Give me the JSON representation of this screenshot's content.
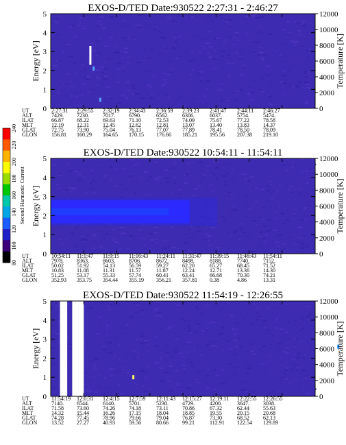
{
  "chart_data": [
    {
      "type": "heatmap",
      "title": "EXOS-D/TED   Date:930522   2:27:31 - 2:46:27",
      "ylabel": "Energy [eV]",
      "ylim": [
        0,
        5
      ],
      "yticks": [
        "0",
        "1",
        "2",
        "3",
        "4",
        "5"
      ],
      "y2label": "Temperature [K]",
      "y2lim": [
        0,
        12000
      ],
      "y2ticks": [
        "0",
        "2000",
        "4000",
        "6000",
        "8000",
        "10000",
        "12000"
      ],
      "x_count": 9,
      "row_labels": [
        "UT",
        "ALT",
        "ILAT",
        "MLT",
        "GLAT",
        "GLON"
      ],
      "rows": [
        [
          "2:27:31",
          "2:29:55",
          "2:32:19",
          "2:34:43",
          "2:36:59",
          "2:39:23",
          "2:41:47",
          "2:44:11",
          "2:46:27"
        ],
        [
          "7429.",
          "7230.",
          "7017.",
          "6790.",
          "6562.",
          "6306.",
          "6037.",
          "5754.",
          "5474."
        ],
        [
          "66.87",
          "68.22",
          "69.63",
          "71.10",
          "72.53",
          "74.09",
          "75.67",
          "77.22",
          "78.58"
        ],
        [
          "12.19",
          "12.31",
          "12.45",
          "12.62",
          "12.81",
          "13.07",
          "13.40",
          "13.83",
          "14.37"
        ],
        [
          "72.75",
          "73.90",
          "75.04",
          "76.13",
          "77.07",
          "77.89",
          "78.41",
          "78.50",
          "78.09"
        ],
        [
          "156.81",
          "160.29",
          "164.65",
          "170.15",
          "176.66",
          "185.21",
          "195.56",
          "207.38",
          "219.10"
        ]
      ],
      "background_level": 110,
      "features": [
        {
          "kind": "streak",
          "x_index": 1.2,
          "energy_from": 2.3,
          "energy_to": 3.3,
          "color": "#ffffff"
        },
        {
          "kind": "dot",
          "x_index": 1.3,
          "energy": 2.1,
          "color": "#5aa0ff"
        },
        {
          "kind": "dot",
          "x_index": 1.5,
          "energy": 0.45,
          "color": "#5aa0ff"
        }
      ]
    },
    {
      "type": "heatmap",
      "title": "EXOS-D/TED   Date:930522   10:54:11 - 11:54:11",
      "ylabel": "Energy [eV]",
      "ylim": [
        0,
        5
      ],
      "yticks": [
        "0",
        "1",
        "2",
        "3",
        "4",
        "5"
      ],
      "y2label": "Temperature [K]",
      "y2lim": [
        0,
        12000
      ],
      "y2ticks": [
        "0",
        "2000",
        "4000",
        "6000",
        "8000",
        "10000",
        "12000"
      ],
      "x_count": 9,
      "row_labels": [
        "UT",
        "ALT",
        "ILAT",
        "MLT",
        "GLAT",
        "GLON"
      ],
      "rows": [
        [
          "10:54:11",
          "11:1:47",
          "11:9:15",
          "11:16:43",
          "11:24:11",
          "11:31:47",
          "11:39:15",
          "11:46:43",
          "11:54:11"
        ],
        [
          "7978.",
          "8363.",
          "8603.",
          "8706.",
          "8672.",
          "8498.",
          "8188.",
          "7740.",
          "7152."
        ],
        [
          "50.02",
          "51.92",
          "54.13",
          "56.59",
          "59.27",
          "62.20",
          "65.27",
          "68.45",
          "71.52"
        ],
        [
          "10.83",
          "11.08",
          "11.31",
          "11.57",
          "11.87",
          "12.24",
          "12.71",
          "13.36",
          "14.30"
        ],
        [
          "51.25",
          "53.17",
          "55.33",
          "57.74",
          "60.41",
          "63.41",
          "66.68",
          "70.30",
          "74.21"
        ],
        [
          "352.93",
          "353.75",
          "354.44",
          "355.19",
          "356.21",
          "357.81",
          "0.38",
          "4.86",
          "13.31"
        ]
      ],
      "background_level": 110,
      "features": [
        {
          "kind": "band",
          "x_from": 0,
          "x_to": 4.2,
          "energy_from": 1.6,
          "energy_to": 2.8,
          "color": "#2a2aff"
        }
      ]
    },
    {
      "type": "heatmap",
      "title": "EXOS-D/TED   Date:930522   11:54:19 - 12:26:55",
      "ylabel": "Energy [eV]",
      "ylim": [
        0,
        5
      ],
      "yticks": [
        "0",
        "1",
        "2",
        "3",
        "4",
        "5"
      ],
      "y2label": "Temperature [K]",
      "y2lim": [
        0,
        12000
      ],
      "y2ticks": [
        "0",
        "2000",
        "4000",
        "6000",
        "8000",
        "10000",
        "12000"
      ],
      "x_count": 9,
      "row_labels": [
        "UT",
        "ALT",
        "ILAT",
        "MLT",
        "GLAT",
        "GLON"
      ],
      "rows": [
        [
          "11:54:19",
          "12:0:31",
          "12:4:15",
          "12:7:59",
          "12:11:43",
          "12:15:27",
          "12:19:11",
          "12:22:55",
          "12:26:55"
        ],
        [
          "7140.",
          "6544.",
          "6140.",
          "5701.",
          "5230.",
          "4729.",
          "4200.",
          "3647.",
          "3038."
        ],
        [
          "71.58",
          "73.60",
          "74.26",
          "74.18",
          "73.11",
          "70.86",
          "67.32",
          "62.44",
          "55.63"
        ],
        [
          "14.32",
          "15.44",
          "16.26",
          "17.15",
          "18.04",
          "18.85",
          "19.55",
          "20.15",
          "20.68"
        ],
        [
          "74.28",
          "77.45",
          "78.96",
          "79.66",
          "79.04",
          "76.87",
          "73.30",
          "68.52",
          "62.13"
        ],
        [
          "13.52",
          "27.27",
          "40.93",
          "59.56",
          "80.66",
          "99.21",
          "112.91",
          "122.54",
          "129.89"
        ]
      ],
      "background_level": 110,
      "features": [
        {
          "kind": "gap",
          "x_from": 0.28,
          "x_to": 0.5,
          "color": "#ffffff"
        },
        {
          "kind": "gap",
          "x_from": 0.65,
          "x_to": 1.0,
          "color": "#ffffff"
        },
        {
          "kind": "dot",
          "x_index": 2.5,
          "energy": 1.0,
          "color": "#ffff66"
        },
        {
          "kind": "dot",
          "x_index": 8.7,
          "energy": 2.6,
          "color": "#1a8cff"
        }
      ]
    }
  ],
  "colorbar": {
    "label": "Second Harmonic Current",
    "ticks": [
      "80",
      "100",
      "120",
      "140",
      "160",
      "180",
      "200",
      "220",
      "240"
    ],
    "range": [
      80,
      240
    ],
    "colors": [
      "#000000",
      "#3b007a",
      "#2020c8",
      "#1a5cff",
      "#00a6e6",
      "#00c8aa",
      "#00c800",
      "#9bdc00",
      "#ffff00",
      "#ffb400",
      "#ff5a00",
      "#ff0000"
    ]
  }
}
